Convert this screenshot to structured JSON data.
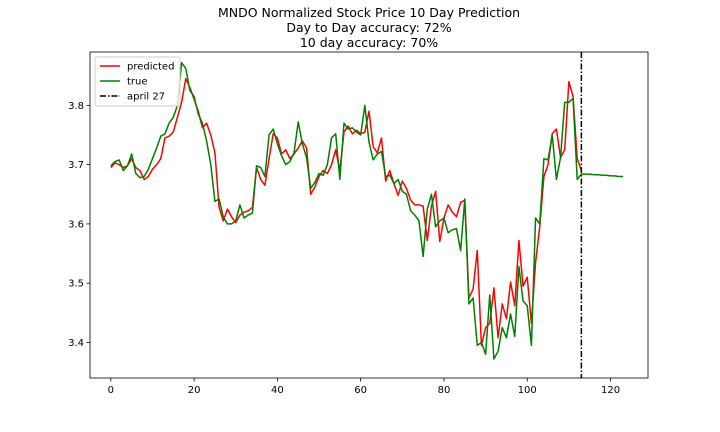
{
  "chart_data": {
    "type": "line",
    "title": "MNDO Normalized Stock Price 10 Day Prediction",
    "subtitle_lines": [
      "Day to Day accuracy: 72%",
      "10 day accuracy: 70%"
    ],
    "xlabel": "",
    "ylabel": "",
    "xlim": [
      -5,
      129
    ],
    "ylim": [
      3.34,
      3.89
    ],
    "x_ticks": [
      0,
      20,
      40,
      60,
      80,
      100,
      120
    ],
    "y_ticks": [
      3.4,
      3.5,
      3.6,
      3.7,
      3.8
    ],
    "y_tick_labels": [
      "3.4",
      "3.5",
      "3.6",
      "3.7",
      "3.8"
    ],
    "grid": false,
    "legend_position": "top-left",
    "series": [
      {
        "name": "predicted",
        "color": "#ff0000",
        "x": [
          0,
          1,
          2,
          3,
          4,
          5,
          6,
          7,
          8,
          9,
          10,
          11,
          12,
          13,
          14,
          15,
          16,
          17,
          18,
          19,
          20,
          21,
          22,
          23,
          24,
          25,
          26,
          27,
          28,
          29,
          30,
          31,
          32,
          33,
          34,
          35,
          36,
          37,
          38,
          39,
          40,
          41,
          42,
          43,
          44,
          45,
          46,
          47,
          48,
          49,
          50,
          51,
          52,
          53,
          54,
          55,
          56,
          57,
          58,
          59,
          60,
          61,
          62,
          63,
          64,
          65,
          66,
          67,
          68,
          69,
          70,
          71,
          72,
          73,
          74,
          75,
          76,
          77,
          78,
          79,
          80,
          81,
          82,
          83,
          84,
          85,
          86,
          87,
          88,
          89,
          90,
          91,
          92,
          93,
          94,
          95,
          96,
          97,
          98,
          99,
          100,
          101,
          102,
          103,
          104,
          105,
          106,
          107,
          108,
          109,
          110,
          111,
          112,
          113
        ],
        "values": [
          3.695,
          3.703,
          3.7,
          3.695,
          3.698,
          3.71,
          3.695,
          3.69,
          3.675,
          3.68,
          3.692,
          3.7,
          3.71,
          3.745,
          3.748,
          3.755,
          3.78,
          3.805,
          3.845,
          3.83,
          3.81,
          3.79,
          3.762,
          3.77,
          3.75,
          3.72,
          3.628,
          3.605,
          3.625,
          3.612,
          3.602,
          3.615,
          3.62,
          3.622,
          3.628,
          3.695,
          3.675,
          3.665,
          3.71,
          3.752,
          3.745,
          3.718,
          3.725,
          3.71,
          3.718,
          3.728,
          3.74,
          3.728,
          3.65,
          3.662,
          3.68,
          3.69,
          3.685,
          3.7,
          3.725,
          3.69,
          3.755,
          3.765,
          3.752,
          3.758,
          3.752,
          3.755,
          3.79,
          3.73,
          3.72,
          3.745,
          3.672,
          3.69,
          3.668,
          3.648,
          3.672,
          3.66,
          3.64,
          3.632,
          3.632,
          3.63,
          3.572,
          3.63,
          3.655,
          3.57,
          3.61,
          3.632,
          3.62,
          3.612,
          3.636,
          3.64,
          3.475,
          3.49,
          3.555,
          3.395,
          3.425,
          3.432,
          3.492,
          3.408,
          3.465,
          3.44,
          3.502,
          3.462,
          3.572,
          3.495,
          3.51,
          3.432,
          3.535,
          3.595,
          3.68,
          3.7,
          3.752,
          3.76,
          3.712,
          3.725,
          3.84,
          3.815,
          3.71,
          3.69
        ]
      },
      {
        "name": "true",
        "color": "#008000",
        "x": [
          0,
          1,
          2,
          3,
          4,
          5,
          6,
          7,
          8,
          9,
          10,
          11,
          12,
          13,
          14,
          15,
          16,
          17,
          18,
          19,
          20,
          21,
          22,
          23,
          24,
          25,
          26,
          27,
          28,
          29,
          30,
          31,
          32,
          33,
          34,
          35,
          36,
          37,
          38,
          39,
          40,
          41,
          42,
          43,
          44,
          45,
          46,
          47,
          48,
          49,
          50,
          51,
          52,
          53,
          54,
          55,
          56,
          57,
          58,
          59,
          60,
          61,
          62,
          63,
          64,
          65,
          66,
          67,
          68,
          69,
          70,
          71,
          72,
          73,
          74,
          75,
          76,
          77,
          78,
          79,
          80,
          81,
          82,
          83,
          84,
          85,
          86,
          87,
          88,
          89,
          90,
          91,
          92,
          93,
          94,
          95,
          96,
          97,
          98,
          99,
          100,
          101,
          102,
          103,
          104,
          105,
          106,
          107,
          108,
          109,
          110,
          111,
          112,
          113,
          114,
          115,
          116,
          117,
          118,
          119,
          120,
          121,
          122,
          123
        ],
        "values": [
          3.698,
          3.705,
          3.708,
          3.69,
          3.698,
          3.718,
          3.685,
          3.678,
          3.68,
          3.692,
          3.71,
          3.728,
          3.748,
          3.752,
          3.77,
          3.78,
          3.8,
          3.872,
          3.862,
          3.825,
          3.815,
          3.785,
          3.77,
          3.74,
          3.7,
          3.638,
          3.642,
          3.612,
          3.6,
          3.6,
          3.605,
          3.632,
          3.61,
          3.615,
          3.618,
          3.698,
          3.695,
          3.68,
          3.75,
          3.76,
          3.735,
          3.715,
          3.7,
          3.705,
          3.72,
          3.772,
          3.735,
          3.712,
          3.66,
          3.67,
          3.685,
          3.682,
          3.7,
          3.745,
          3.752,
          3.675,
          3.77,
          3.76,
          3.762,
          3.755,
          3.75,
          3.8,
          3.738,
          3.708,
          3.718,
          3.722,
          3.68,
          3.682,
          3.668,
          3.675,
          3.655,
          3.65,
          3.622,
          3.615,
          3.605,
          3.545,
          3.625,
          3.65,
          3.595,
          3.605,
          3.61,
          3.585,
          3.59,
          3.592,
          3.555,
          3.642,
          3.465,
          3.475,
          3.395,
          3.4,
          3.38,
          3.48,
          3.372,
          3.385,
          3.425,
          3.408,
          3.448,
          3.41,
          3.528,
          3.47,
          3.462,
          3.395,
          3.61,
          3.6,
          3.71,
          3.708,
          3.75,
          3.675,
          3.712,
          3.805,
          3.805,
          3.812,
          3.675,
          3.684,
          3.684,
          3.684,
          3.683,
          3.683,
          3.682,
          3.682,
          3.681,
          3.681,
          3.68,
          3.68
        ]
      }
    ],
    "vertical_line": {
      "label": "april 27",
      "x": 113,
      "color": "#000000",
      "style": "dashdot"
    }
  }
}
